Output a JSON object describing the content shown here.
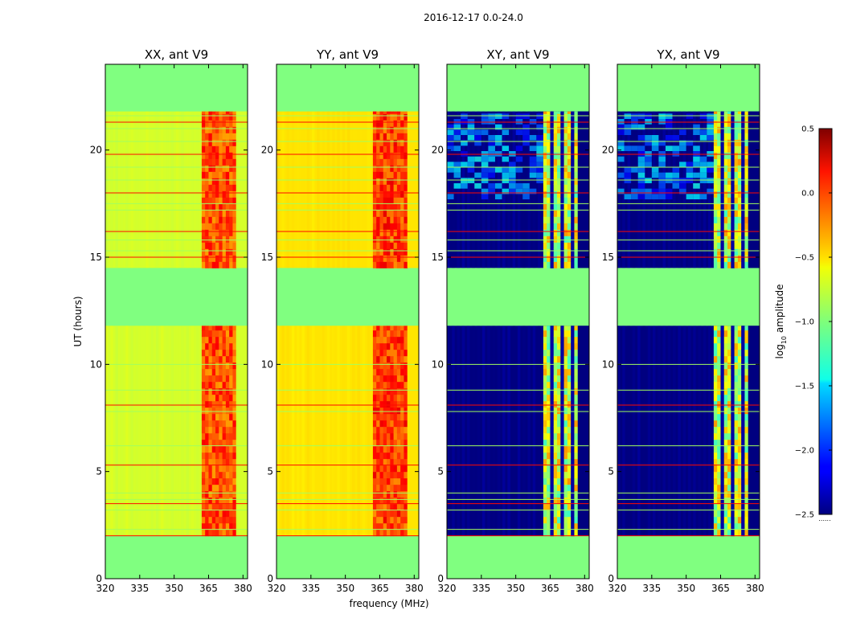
{
  "chart_data": {
    "type": "heatmap",
    "suptitle": "2016-12-17 0.0-24.0",
    "xlabel": "frequency (MHz)",
    "ylabel": "UT (hours)",
    "xlim": [
      320,
      382
    ],
    "ylim": [
      0,
      24
    ],
    "xticks": [
      320,
      335,
      350,
      365,
      380
    ],
    "yticks": [
      0,
      5,
      10,
      15,
      20
    ],
    "colorbar": {
      "label_prefix": "log",
      "label_sub": "10",
      "label_suffix": " amplitude",
      "vmin": -2.5,
      "vmax": 0.5,
      "ticks": [
        -2.5,
        -2.0,
        -1.5,
        -1.0,
        -0.5,
        0.0,
        0.5
      ],
      "tick_labels": [
        "−2.5",
        "−2.0",
        "−1.5",
        "−1.0",
        "−0.5",
        "0.0",
        "0.5"
      ],
      "footnote": "......"
    },
    "no_data_value": -1.0,
    "observation_blocks_ut": [
      [
        2.0,
        11.8
      ],
      [
        14.5,
        21.8
      ]
    ],
    "rfi_band_mhz": [
      362,
      377
    ],
    "panels": [
      {
        "title": "XX, ant V9",
        "polarization": "XX",
        "background_level": -0.75,
        "band_level": -0.15,
        "cross_pol": false
      },
      {
        "title": "YY, ant V9",
        "polarization": "YY",
        "background_level": -0.55,
        "band_level": -0.1,
        "cross_pol": false
      },
      {
        "title": "XY, ant V9",
        "polarization": "XY",
        "background_level": -2.5,
        "band_level": -0.8,
        "cross_pol": true
      },
      {
        "title": "YX, ant V9",
        "polarization": "YX",
        "background_level": -2.5,
        "band_level": -0.8,
        "cross_pol": true
      }
    ],
    "flagged_times_ut": [
      2.0,
      2.3,
      3.2,
      3.5,
      3.7,
      4.0,
      5.3,
      6.2,
      7.8,
      8.1,
      8.8,
      10.0,
      15.0,
      15.3,
      15.8,
      16.2,
      17.2,
      17.5,
      18.0,
      18.6,
      19.2,
      19.8,
      20.4,
      21.0,
      21.3,
      21.6
    ]
  }
}
